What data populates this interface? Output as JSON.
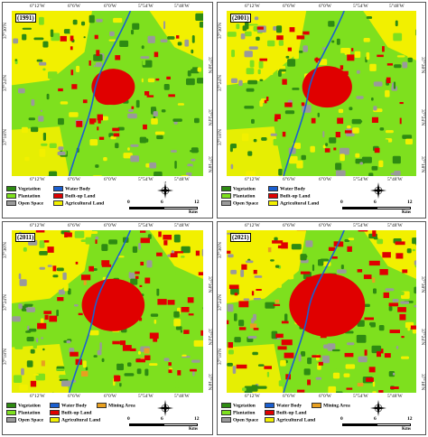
{
  "panels": [
    {
      "year": "(1991)",
      "ticks_top": [
        "6°12'W",
        "6°6'W",
        "6°0'W",
        "5°54'W",
        "5°48'W"
      ],
      "ticks_bot": [
        "6°12'W",
        "6°6'W",
        "6°0'W",
        "5°54'W",
        "5°48'W"
      ],
      "ticks_left": [
        "37°30'N",
        "37°24'N",
        "37°18'N"
      ],
      "ticks_right": [
        "37°30'N",
        "37°24'N",
        "37°18'N"
      ]
    },
    {
      "year": "(2001)",
      "ticks_top": [
        "6°12'W",
        "6°6'W",
        "6°0'W",
        "5°54'W",
        "5°48'W"
      ],
      "ticks_bot": [
        "6°12'W",
        "6°6'W",
        "6°0'W",
        "5°54'W",
        "5°48'W"
      ],
      "ticks_left": [
        "37°30'N",
        "37°24'N",
        "37°18'N"
      ],
      "ticks_right": [
        "37°30'N",
        "37°24'N",
        "37°18'N"
      ]
    },
    {
      "year": "(2011)",
      "ticks_top": [
        "6°12'W",
        "6°6'W",
        "6°0'W",
        "5°54'W",
        "5°48'W"
      ],
      "ticks_bot": [
        "6°12'W",
        "6°6'W",
        "6°0'W",
        "5°54'W",
        "5°48'W"
      ],
      "ticks_left": [
        "37°30'N",
        "37°24'N",
        "37°18'N"
      ],
      "ticks_right": [
        "37°30'N",
        "37°24'N",
        "37°18'N"
      ]
    },
    {
      "year": "(2021)",
      "ticks_top": [
        "6°12'W",
        "6°6'W",
        "6°0'W",
        "5°54'W",
        "5°48'W"
      ],
      "ticks_bot": [
        "6°12'W",
        "6°6'W",
        "6°0'W",
        "5°54'W",
        "5°48'W"
      ],
      "ticks_left": [
        "37°30'N",
        "37°24'N",
        "37°18'N"
      ],
      "ticks_right": [
        "37°30'N",
        "37°24'N",
        "37°18'N"
      ]
    }
  ],
  "legend": {
    "vegetation": "Vegetation",
    "plantation": "Plantation",
    "open_space": "Open Space",
    "water_body": "Water Body",
    "built_up": "Built-up Land",
    "agricultural": "Agricultural Land",
    "mining": "Mining Area"
  },
  "colors": {
    "vegetation": "#2e8b12",
    "plantation": "#7ee01e",
    "open_space": "#9a9a9a",
    "water_body": "#1a5fd0",
    "built_up": "#e00000",
    "agricultural": "#f2f000",
    "mining": "#e8a020"
  },
  "scale": {
    "labels": [
      "0",
      "6",
      "12"
    ],
    "unit": "Kms"
  },
  "north": {
    "n": "N",
    "s": "S",
    "e": "E",
    "w": "W"
  }
}
